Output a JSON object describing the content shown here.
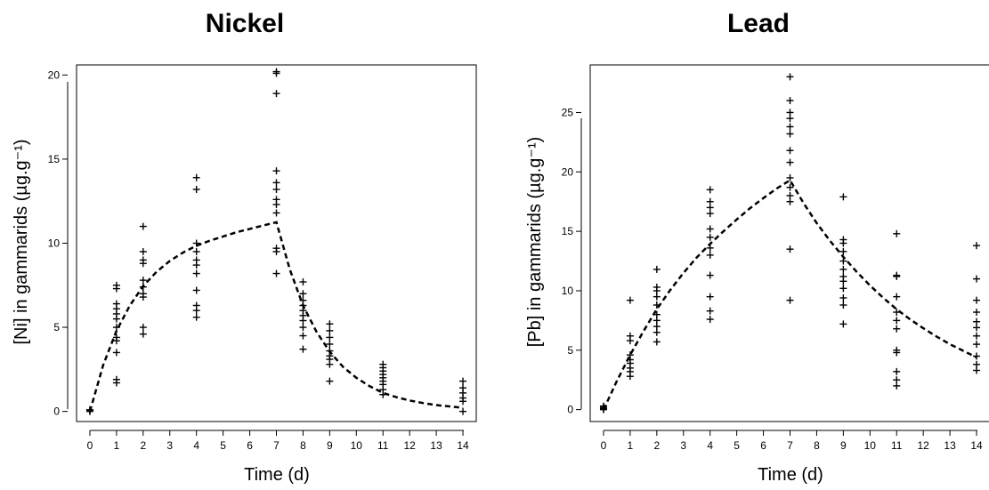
{
  "chart_data": [
    {
      "type": "scatter",
      "title": "Nickel",
      "xlabel": "Time  (d)",
      "ylabel": "[Ni] in gammarids (µg.g⁻¹)",
      "xlim": [
        -0.5,
        14.5
      ],
      "ylim": [
        -0.6,
        20.6
      ],
      "xticks": [
        0,
        1,
        2,
        3,
        4,
        5,
        6,
        7,
        8,
        9,
        10,
        11,
        12,
        13,
        14
      ],
      "yticks": [
        0,
        5,
        10,
        15,
        20
      ],
      "grid": false,
      "legend": "none",
      "points": [
        [
          0,
          0
        ],
        [
          0,
          0.05
        ],
        [
          0,
          0.1
        ],
        [
          1,
          1.7
        ],
        [
          1,
          1.9
        ],
        [
          1,
          3.5
        ],
        [
          1,
          4.2
        ],
        [
          1,
          4.4
        ],
        [
          1,
          5.0
        ],
        [
          1,
          5.5
        ],
        [
          1,
          5.8
        ],
        [
          1,
          6.1
        ],
        [
          1,
          6.4
        ],
        [
          1,
          7.3
        ],
        [
          1,
          7.5
        ],
        [
          2,
          4.6
        ],
        [
          2,
          5.0
        ],
        [
          2,
          6.8
        ],
        [
          2,
          7.0
        ],
        [
          2,
          7.4
        ],
        [
          2,
          7.8
        ],
        [
          2,
          8.8
        ],
        [
          2,
          9.0
        ],
        [
          2,
          9.5
        ],
        [
          2,
          11.0
        ],
        [
          4,
          5.6
        ],
        [
          4,
          6.0
        ],
        [
          4,
          6.3
        ],
        [
          4,
          7.2
        ],
        [
          4,
          8.2
        ],
        [
          4,
          8.7
        ],
        [
          4,
          9.0
        ],
        [
          4,
          9.5
        ],
        [
          4,
          10.0
        ],
        [
          4,
          13.2
        ],
        [
          4,
          13.9
        ],
        [
          7,
          8.2
        ],
        [
          7,
          9.5
        ],
        [
          7,
          9.7
        ],
        [
          7,
          11.8
        ],
        [
          7,
          12.3
        ],
        [
          7,
          12.6
        ],
        [
          7,
          13.2
        ],
        [
          7,
          13.6
        ],
        [
          7,
          14.3
        ],
        [
          7,
          18.9
        ],
        [
          7,
          20.1
        ],
        [
          7,
          20.2
        ],
        [
          8,
          3.7
        ],
        [
          8,
          4.5
        ],
        [
          8,
          5.0
        ],
        [
          8,
          5.4
        ],
        [
          8,
          5.7
        ],
        [
          8,
          6.0
        ],
        [
          8,
          6.3
        ],
        [
          8,
          6.6
        ],
        [
          8,
          7.0
        ],
        [
          8,
          7.7
        ],
        [
          9,
          1.8
        ],
        [
          9,
          2.8
        ],
        [
          9,
          3.1
        ],
        [
          9,
          3.3
        ],
        [
          9,
          3.6
        ],
        [
          9,
          4.0
        ],
        [
          9,
          4.4
        ],
        [
          9,
          4.8
        ],
        [
          9,
          5.2
        ],
        [
          11,
          1.0
        ],
        [
          11,
          1.3
        ],
        [
          11,
          1.6
        ],
        [
          11,
          1.8
        ],
        [
          11,
          2.0
        ],
        [
          11,
          2.2
        ],
        [
          11,
          2.4
        ],
        [
          11,
          2.6
        ],
        [
          11,
          2.8
        ],
        [
          14,
          0.0
        ],
        [
          14,
          0.6
        ],
        [
          14,
          0.8
        ],
        [
          14,
          1.1
        ],
        [
          14,
          1.4
        ],
        [
          14,
          1.8
        ]
      ],
      "fit": {
        "x": [
          0,
          0.5,
          1,
          1.5,
          2,
          2.5,
          3,
          3.5,
          4,
          4.5,
          5,
          5.5,
          6,
          6.5,
          7,
          7.5,
          8,
          8.5,
          9,
          9.5,
          10,
          10.5,
          11,
          11.5,
          12,
          12.5,
          13,
          13.5,
          14
        ],
        "y": [
          0,
          2.75,
          4.8,
          6.3,
          7.45,
          8.3,
          8.95,
          9.45,
          9.85,
          10.15,
          10.4,
          10.65,
          10.85,
          11.05,
          11.25,
          8.45,
          6.3,
          4.75,
          3.55,
          2.65,
          2.0,
          1.5,
          1.1,
          0.85,
          0.65,
          0.5,
          0.38,
          0.3,
          0.22
        ]
      }
    },
    {
      "type": "scatter",
      "title": "Lead",
      "xlabel": "Time  (d)",
      "ylabel": "[Pb] in gammarids (µg.g⁻¹)",
      "xlim": [
        -0.5,
        14.5
      ],
      "ylim": [
        -1.0,
        29.0
      ],
      "xticks": [
        0,
        1,
        2,
        3,
        4,
        5,
        6,
        7,
        8,
        9,
        10,
        11,
        12,
        13,
        14
      ],
      "yticks": [
        0,
        5,
        10,
        15,
        20,
        25
      ],
      "grid": false,
      "legend": "none",
      "points": [
        [
          0,
          0
        ],
        [
          0,
          0.1
        ],
        [
          0,
          0.2
        ],
        [
          0,
          0.3
        ],
        [
          1,
          2.8
        ],
        [
          1,
          3.2
        ],
        [
          1,
          3.5
        ],
        [
          1,
          3.9
        ],
        [
          1,
          4.2
        ],
        [
          1,
          4.6
        ],
        [
          1,
          5.8
        ],
        [
          1,
          6.2
        ],
        [
          1,
          9.2
        ],
        [
          2,
          5.7
        ],
        [
          2,
          6.5
        ],
        [
          2,
          7.0
        ],
        [
          2,
          7.5
        ],
        [
          2,
          8.0
        ],
        [
          2,
          8.8
        ],
        [
          2,
          9.5
        ],
        [
          2,
          10.0
        ],
        [
          2,
          10.3
        ],
        [
          2,
          11.8
        ],
        [
          4,
          7.6
        ],
        [
          4,
          8.3
        ],
        [
          4,
          9.5
        ],
        [
          4,
          11.3
        ],
        [
          4,
          13.0
        ],
        [
          4,
          13.6
        ],
        [
          4,
          14.5
        ],
        [
          4,
          15.2
        ],
        [
          4,
          16.5
        ],
        [
          4,
          17.0
        ],
        [
          4,
          17.5
        ],
        [
          4,
          18.5
        ],
        [
          7,
          9.2
        ],
        [
          7,
          13.5
        ],
        [
          7,
          17.5
        ],
        [
          7,
          18.0
        ],
        [
          7,
          18.7
        ],
        [
          7,
          19.5
        ],
        [
          7,
          20.8
        ],
        [
          7,
          21.8
        ],
        [
          7,
          23.2
        ],
        [
          7,
          23.8
        ],
        [
          7,
          24.5
        ],
        [
          7,
          25.0
        ],
        [
          7,
          26.0
        ],
        [
          7,
          28.0
        ],
        [
          9,
          7.2
        ],
        [
          9,
          8.8
        ],
        [
          9,
          9.4
        ],
        [
          9,
          10.2
        ],
        [
          9,
          10.8
        ],
        [
          9,
          11.2
        ],
        [
          9,
          11.8
        ],
        [
          9,
          12.5
        ],
        [
          9,
          13.3
        ],
        [
          9,
          14.0
        ],
        [
          9,
          14.3
        ],
        [
          9,
          17.9
        ],
        [
          11,
          2.0
        ],
        [
          11,
          2.5
        ],
        [
          11,
          3.2
        ],
        [
          11,
          4.8
        ],
        [
          11,
          5.0
        ],
        [
          11,
          6.8
        ],
        [
          11,
          7.5
        ],
        [
          11,
          8.2
        ],
        [
          11,
          9.5
        ],
        [
          11,
          11.2
        ],
        [
          11,
          11.3
        ],
        [
          11,
          14.8
        ],
        [
          14,
          3.3
        ],
        [
          14,
          3.8
        ],
        [
          14,
          4.5
        ],
        [
          14,
          5.5
        ],
        [
          14,
          6.2
        ],
        [
          14,
          6.9
        ],
        [
          14,
          7.4
        ],
        [
          14,
          8.2
        ],
        [
          14,
          9.2
        ],
        [
          14,
          11.0
        ],
        [
          14,
          13.8
        ]
      ],
      "fit": {
        "x": [
          0,
          0.5,
          1,
          1.5,
          2,
          2.5,
          3,
          3.5,
          4,
          4.5,
          5,
          5.5,
          6,
          6.5,
          7,
          7.5,
          8,
          8.5,
          9,
          9.5,
          10,
          10.5,
          11,
          11.5,
          12,
          12.5,
          13,
          13.5,
          14
        ],
        "y": [
          0,
          2.4,
          4.6,
          6.6,
          8.45,
          10.05,
          11.5,
          12.8,
          13.95,
          15.0,
          16.0,
          16.95,
          17.8,
          18.6,
          19.3,
          17.4,
          15.7,
          14.2,
          12.85,
          11.6,
          10.45,
          9.4,
          8.45,
          7.6,
          6.85,
          6.15,
          5.5,
          4.95,
          4.4
        ]
      }
    }
  ]
}
